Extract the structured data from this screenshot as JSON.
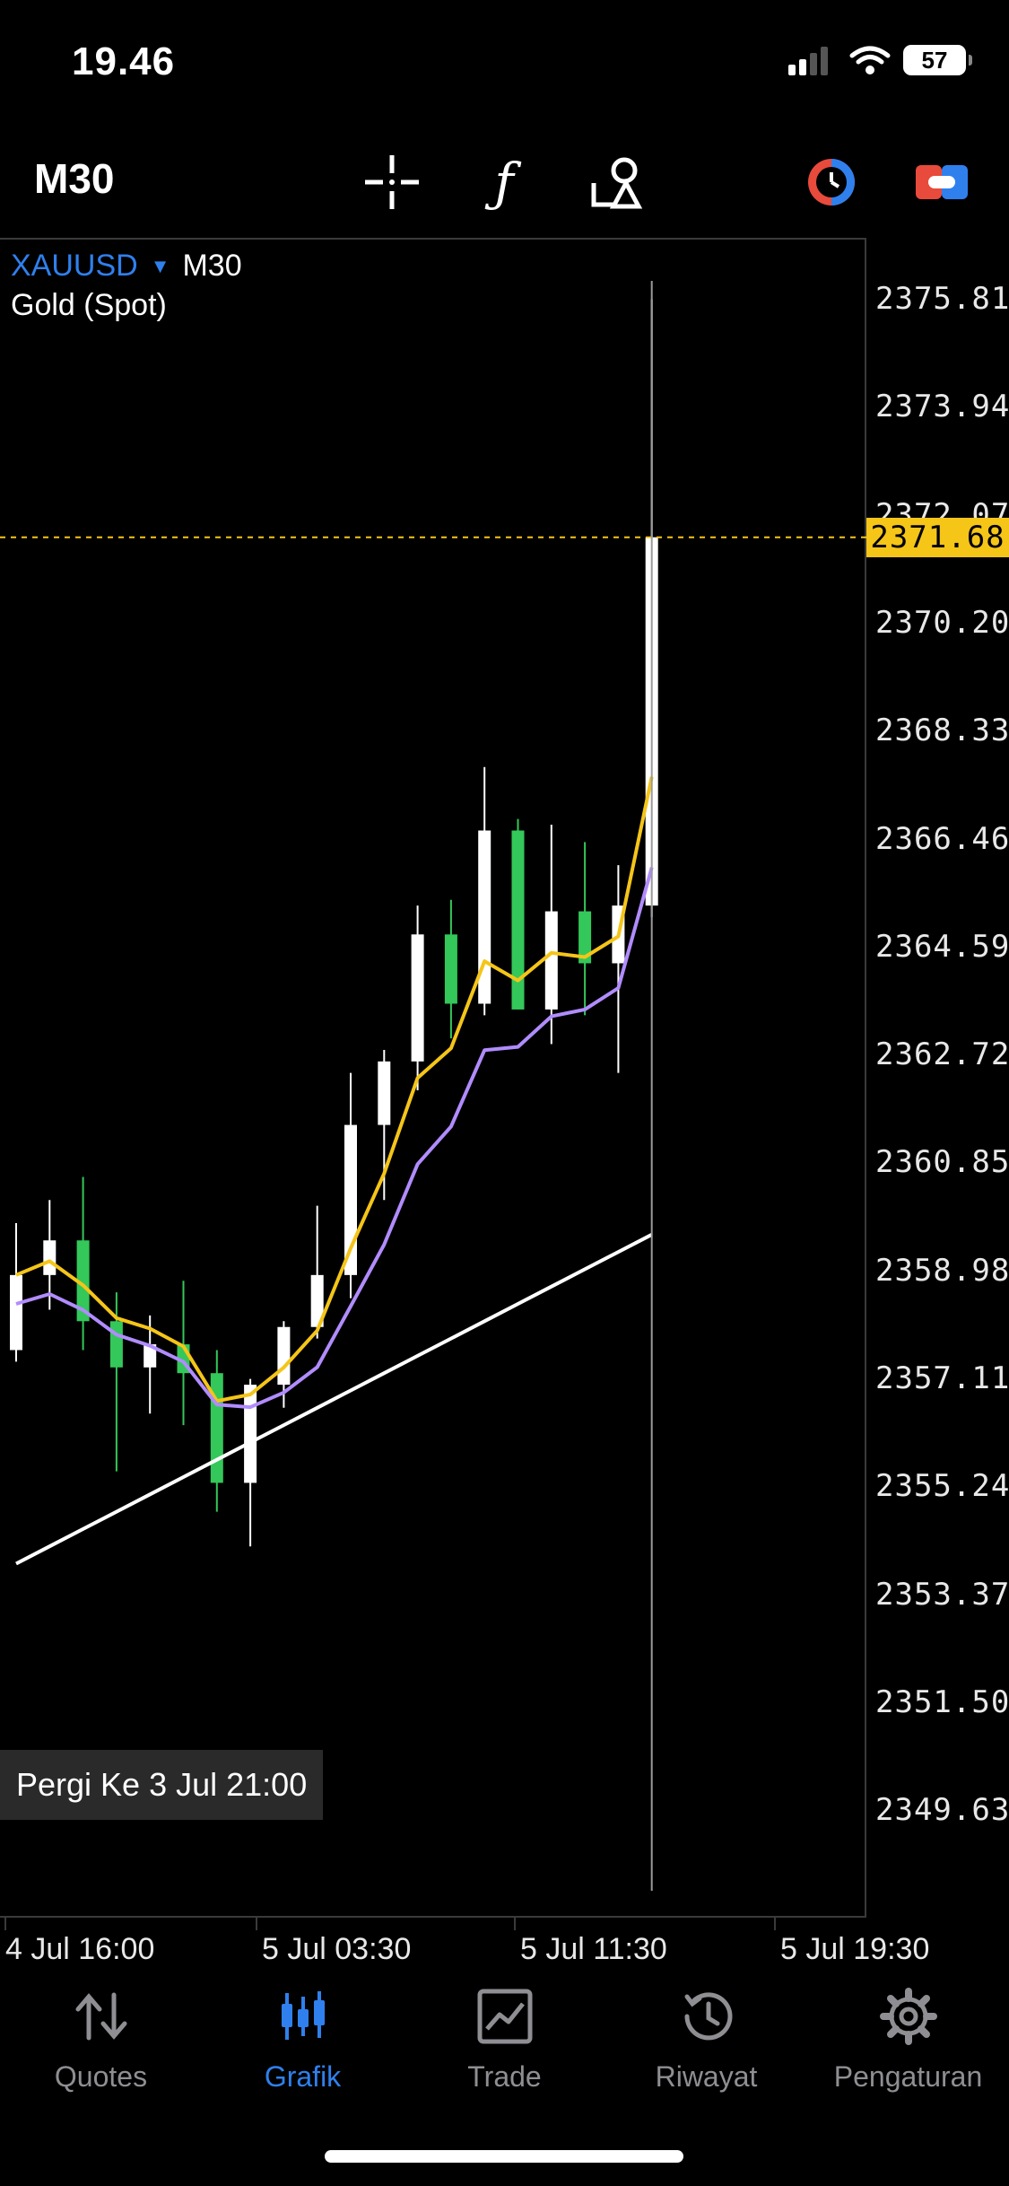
{
  "status": {
    "time": "19.46",
    "battery": "57"
  },
  "toolbar": {
    "timeframe": "M30",
    "icons": [
      "crosshair-icon",
      "indicator-icon",
      "objects-icon",
      "timeframe-switch-icon",
      "trade-toggle-icon"
    ]
  },
  "chart": {
    "symbol": "XAUUSD",
    "timeframe": "M30",
    "description": "Gold (Spot)",
    "price_labels": [
      "2375.81",
      "2373.94",
      "2372.07",
      "2370.20",
      "2368.33",
      "2366.46",
      "2364.59",
      "2362.72",
      "2360.85",
      "2358.98",
      "2357.11",
      "2355.24",
      "2353.37",
      "2351.50",
      "2349.63"
    ],
    "current_price": "2371.68",
    "goto_button": "Pergi Ke 3 Jul 21:00",
    "time_labels": [
      "4 Jul 16:00",
      "5 Jul 03:30",
      "5 Jul 11:30",
      "5 Jul 19:30"
    ],
    "colors": {
      "bull": "#ffffff",
      "bear": "#34c759",
      "ma_fast": "#f5c518",
      "ma_mid": "#b18cff",
      "ma_slow": "#ffffff",
      "current_price_line": "#f5c518",
      "accent": "#2f80ed"
    }
  },
  "chart_data": {
    "type": "candlestick",
    "y_axis_range": [
      2349.63,
      2375.81
    ],
    "candles": [
      {
        "o": 2357.6,
        "h": 2359.8,
        "l": 2357.4,
        "c": 2358.9
      },
      {
        "o": 2358.9,
        "h": 2360.2,
        "l": 2358.3,
        "c": 2359.5
      },
      {
        "o": 2359.5,
        "h": 2360.6,
        "l": 2357.6,
        "c": 2358.1
      },
      {
        "o": 2358.1,
        "h": 2358.6,
        "l": 2355.5,
        "c": 2357.3
      },
      {
        "o": 2357.3,
        "h": 2358.2,
        "l": 2356.5,
        "c": 2357.7
      },
      {
        "o": 2357.7,
        "h": 2358.8,
        "l": 2356.3,
        "c": 2357.2
      },
      {
        "o": 2357.2,
        "h": 2357.6,
        "l": 2354.8,
        "c": 2355.3
      },
      {
        "o": 2355.3,
        "h": 2357.1,
        "l": 2354.2,
        "c": 2357.0
      },
      {
        "o": 2357.0,
        "h": 2358.1,
        "l": 2356.6,
        "c": 2358.0
      },
      {
        "o": 2358.0,
        "h": 2360.1,
        "l": 2357.8,
        "c": 2358.9
      },
      {
        "o": 2358.9,
        "h": 2362.4,
        "l": 2358.5,
        "c": 2361.5
      },
      {
        "o": 2361.5,
        "h": 2362.8,
        "l": 2360.2,
        "c": 2362.6
      },
      {
        "o": 2362.6,
        "h": 2365.3,
        "l": 2362.1,
        "c": 2364.8
      },
      {
        "o": 2364.8,
        "h": 2365.4,
        "l": 2363.0,
        "c": 2363.6
      },
      {
        "o": 2363.6,
        "h": 2367.7,
        "l": 2363.4,
        "c": 2366.6
      },
      {
        "o": 2366.6,
        "h": 2366.8,
        "l": 2363.5,
        "c": 2363.5
      },
      {
        "o": 2363.5,
        "h": 2366.7,
        "l": 2362.9,
        "c": 2365.2
      },
      {
        "o": 2365.2,
        "h": 2366.4,
        "l": 2363.4,
        "c": 2364.3
      },
      {
        "o": 2364.3,
        "h": 2366.0,
        "l": 2362.4,
        "c": 2365.3
      },
      {
        "o": 2365.3,
        "h": 2375.8,
        "l": 2365.1,
        "c": 2371.68
      }
    ],
    "moving_averages": [
      {
        "name": "MA fast",
        "color": "#f5c518"
      },
      {
        "name": "MA medium",
        "color": "#b18cff"
      },
      {
        "name": "MA slow",
        "color": "#ffffff"
      }
    ]
  },
  "nav": {
    "items": [
      {
        "label": "Quotes",
        "icon": "quotes-arrows-icon"
      },
      {
        "label": "Grafik",
        "icon": "chart-candles-icon",
        "active": true
      },
      {
        "label": "Trade",
        "icon": "trade-chart-icon"
      },
      {
        "label": "Riwayat",
        "icon": "history-clock-icon"
      },
      {
        "label": "Pengaturan",
        "icon": "settings-gear-icon"
      }
    ]
  }
}
